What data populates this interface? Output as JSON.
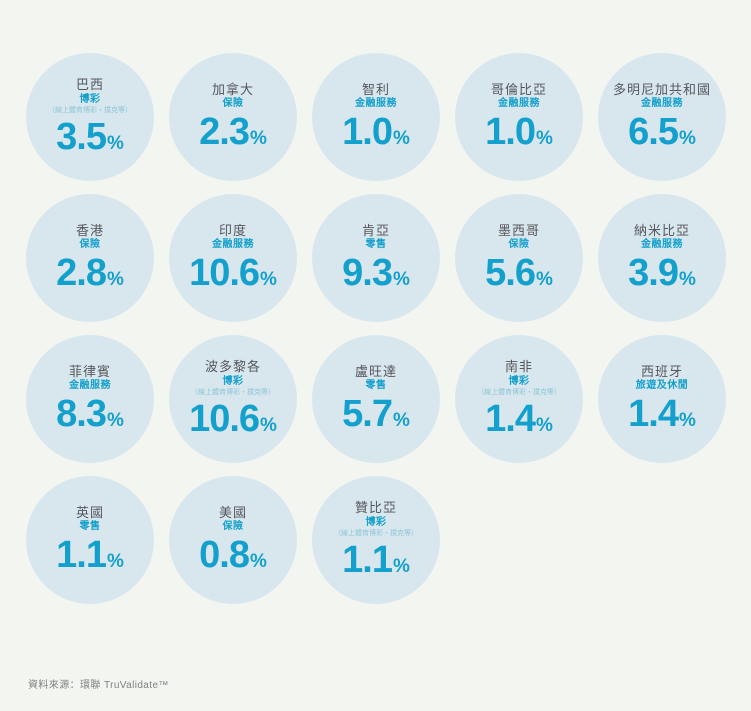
{
  "theme": {
    "background": "#f3f5f0",
    "circle": "#d8e7ee",
    "accent": "#14a0cc",
    "country": "#56575b",
    "note": "#8fc4d8",
    "footer_text_color": "#7f8083"
  },
  "footer": {
    "source": "資料來源：環聯 TruValidate™"
  },
  "chart_data": {
    "type": "bubble-grid",
    "unit": "%",
    "layout": "5 columns x 4 rows, last row has 3 bubbles",
    "items": [
      {
        "country": "巴西",
        "category": "博彩",
        "note": "（線上體育博彩・撲克等）",
        "value": "3.5"
      },
      {
        "country": "加拿大",
        "category": "保險",
        "value": "2.3"
      },
      {
        "country": "智利",
        "category": "金融服務",
        "value": "1.0"
      },
      {
        "country": "哥倫比亞",
        "category": "金融服務",
        "value": "1.0"
      },
      {
        "country": "多明尼加共和國",
        "category": "金融服務",
        "value": "6.5"
      },
      {
        "country": "香港",
        "category": "保險",
        "value": "2.8"
      },
      {
        "country": "印度",
        "category": "金融服務",
        "value": "10.6"
      },
      {
        "country": "肯亞",
        "category": "零售",
        "value": "9.3"
      },
      {
        "country": "墨西哥",
        "category": "保險",
        "value": "5.6"
      },
      {
        "country": "納米比亞",
        "category": "金融服務",
        "value": "3.9"
      },
      {
        "country": "菲律賓",
        "category": "金融服務",
        "value": "8.3"
      },
      {
        "country": "波多黎各",
        "category": "博彩",
        "note": "（線上體育博彩・撲克等）",
        "value": "10.6"
      },
      {
        "country": "盧旺達",
        "category": "零售",
        "value": "5.7"
      },
      {
        "country": "南非",
        "category": "博彩",
        "note": "（線上體育博彩・撲克等）",
        "value": "1.4"
      },
      {
        "country": "西班牙",
        "category": "旅遊及休閒",
        "value": "1.4"
      },
      {
        "country": "英國",
        "category": "零售",
        "value": "1.1"
      },
      {
        "country": "美國",
        "category": "保險",
        "value": "0.8"
      },
      {
        "country": "贊比亞",
        "category": "博彩",
        "note": "（線上體育博彩・撲克等）",
        "value": "1.1"
      }
    ]
  }
}
